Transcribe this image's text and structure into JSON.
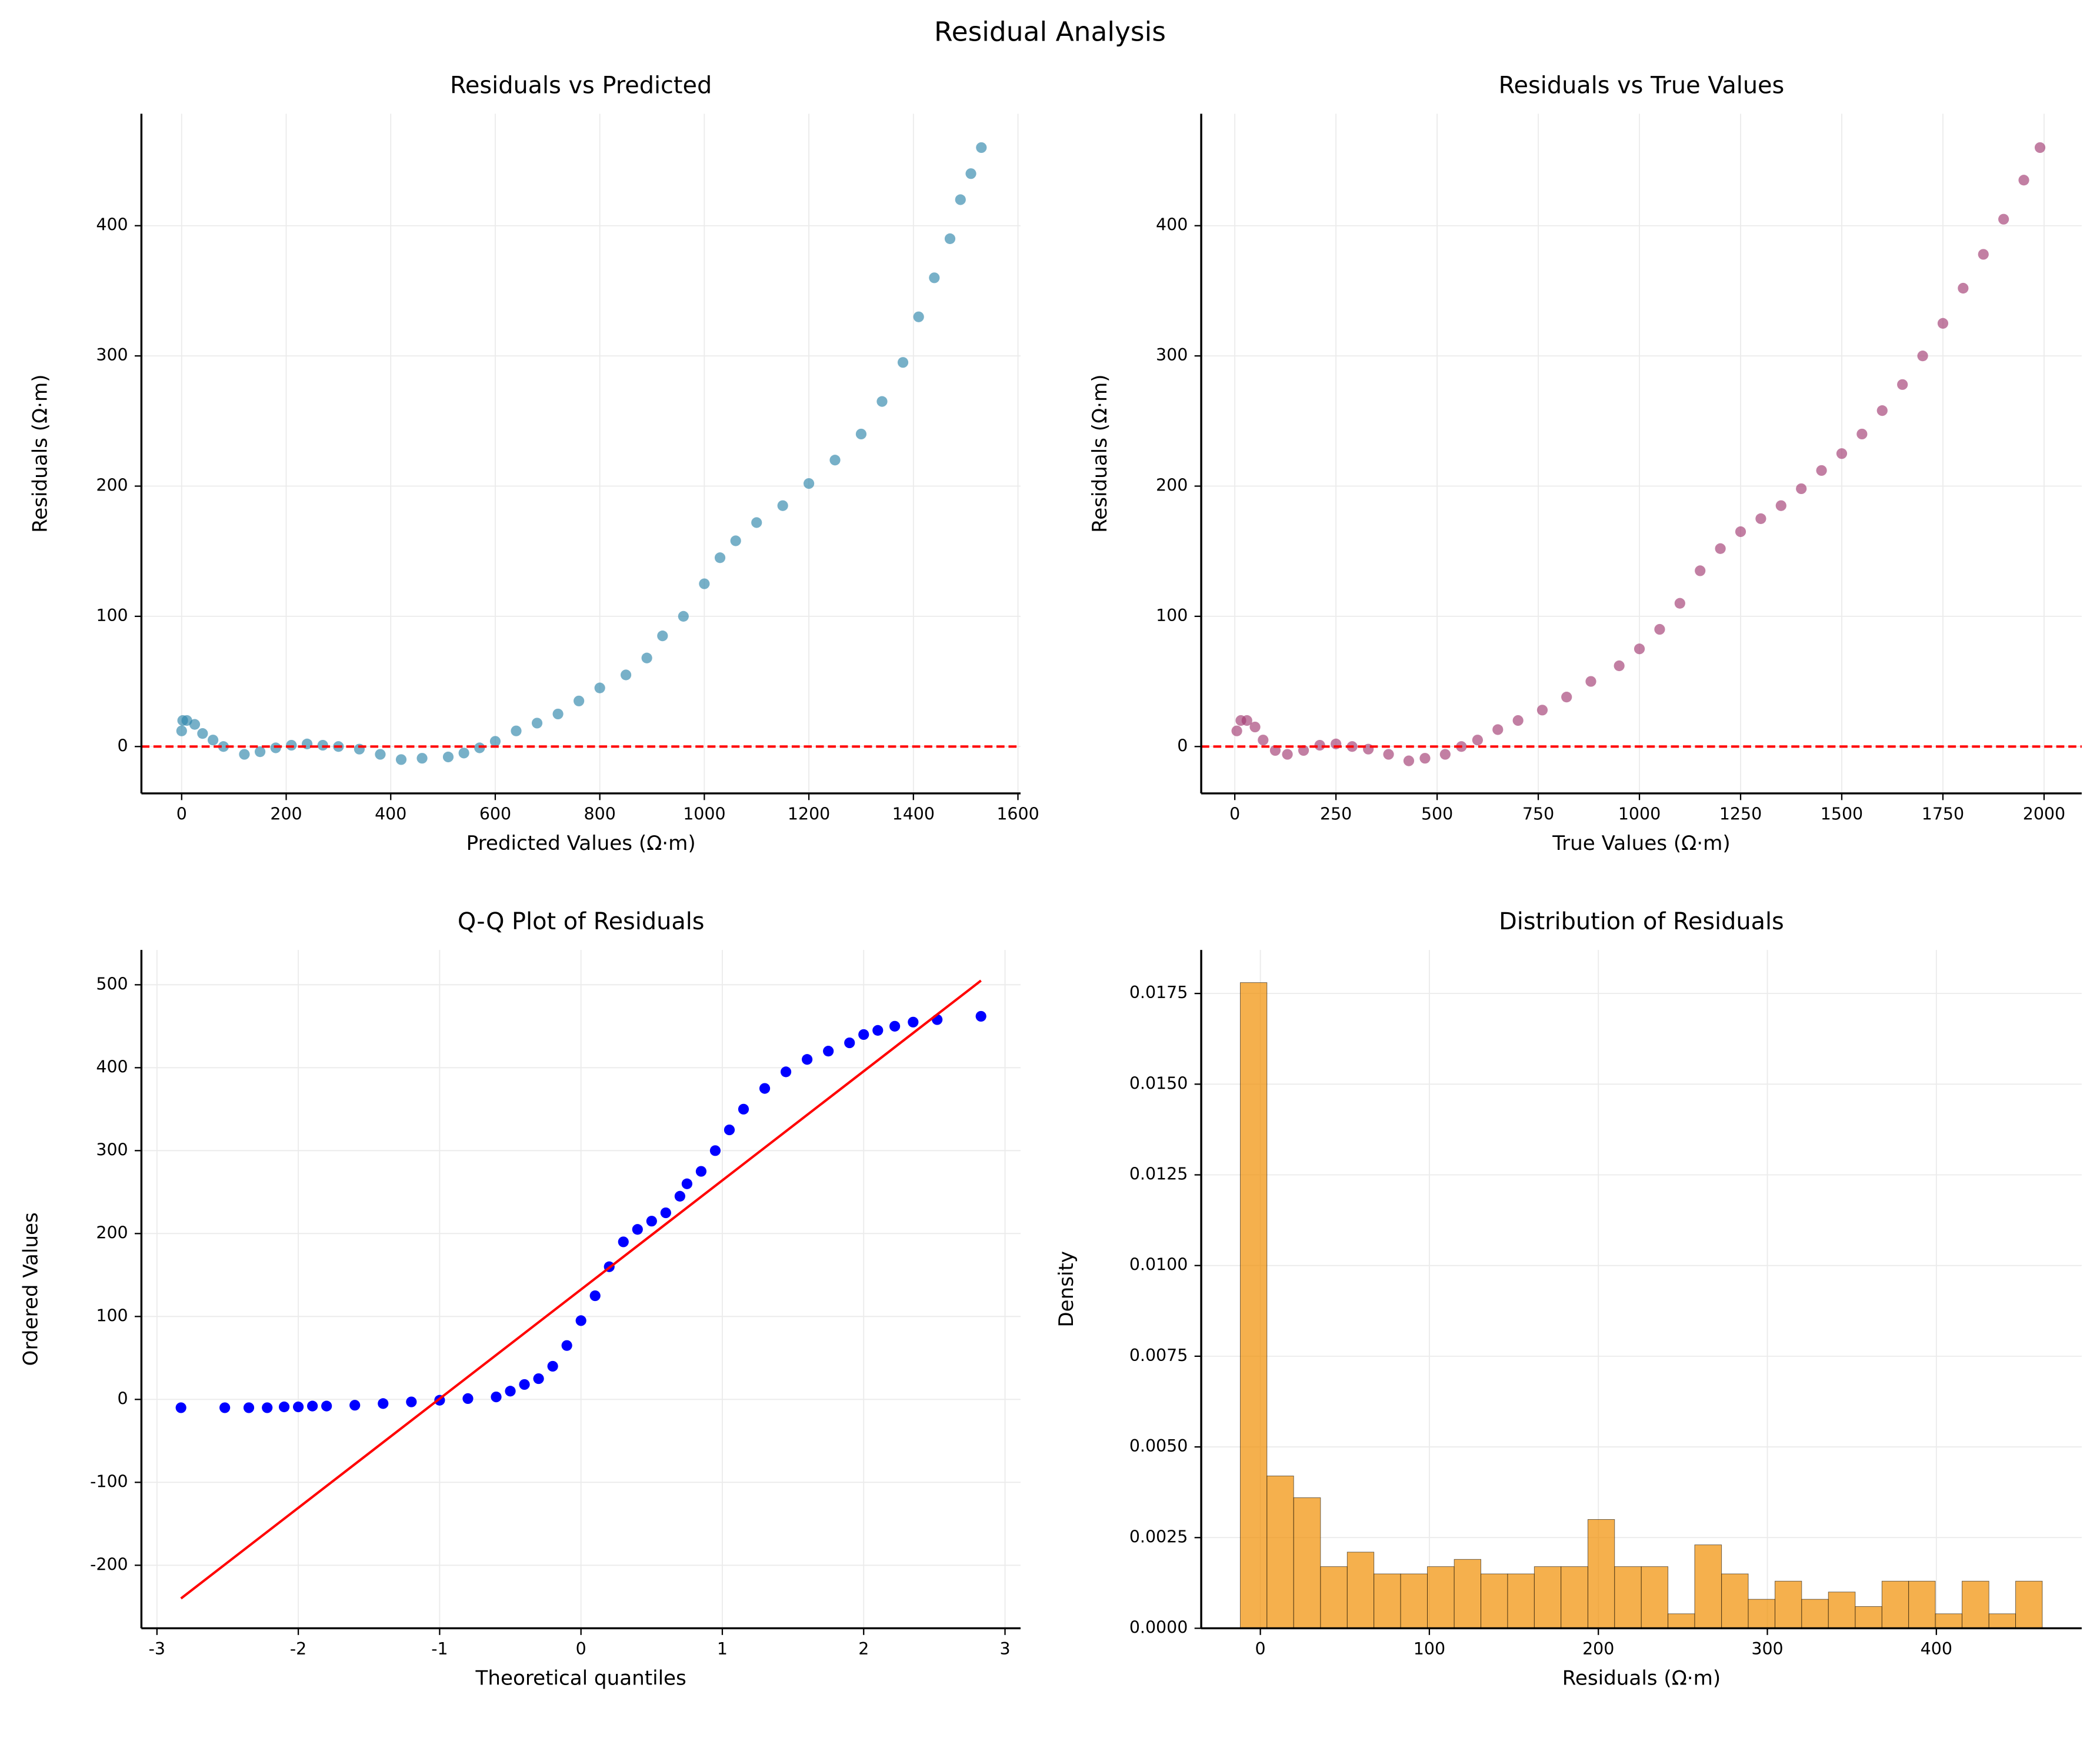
{
  "title": "Residual Analysis",
  "chart_data": [
    {
      "type": "scatter",
      "title": "Residuals vs Predicted",
      "xlabel": "Predicted Values (Ω·m)",
      "ylabel": "Residuals (Ω·m)",
      "color": "#2E86AB",
      "opacity": 0.65,
      "grid": true,
      "x": [
        0,
        2,
        10,
        25,
        40,
        60,
        80,
        120,
        150,
        180,
        210,
        240,
        270,
        300,
        340,
        380,
        420,
        460,
        510,
        540,
        570,
        600,
        640,
        680,
        720,
        760,
        800,
        850,
        890,
        920,
        960,
        1000,
        1030,
        1060,
        1100,
        1150,
        1200,
        1250,
        1300,
        1340,
        1380,
        1410,
        1440,
        1470,
        1490,
        1510,
        1530
      ],
      "values": [
        12,
        20,
        20,
        17,
        10,
        5,
        0,
        -6,
        -4,
        -1,
        1,
        2,
        1,
        0,
        -2,
        -6,
        -10,
        -9,
        -8,
        -5,
        -1,
        4,
        12,
        18,
        25,
        35,
        45,
        55,
        68,
        85,
        100,
        125,
        145,
        158,
        172,
        185,
        202,
        220,
        240,
        265,
        295,
        330,
        360,
        390,
        420,
        440,
        460
      ],
      "hline": 0,
      "hline_color": "#ff0000",
      "xlim": [
        -77,
        1605
      ],
      "ylim": [
        -36,
        486
      ],
      "xticks": [
        0,
        200,
        400,
        600,
        800,
        1000,
        1200,
        1400,
        1600
      ],
      "yticks": [
        0,
        100,
        200,
        300,
        400
      ]
    },
    {
      "type": "scatter",
      "title": "Residuals vs True Values",
      "xlabel": "True Values (Ω·m)",
      "ylabel": "Residuals (Ω·m)",
      "color": "#A23B72",
      "opacity": 0.65,
      "grid": true,
      "x": [
        5,
        15,
        30,
        50,
        70,
        100,
        130,
        170,
        210,
        250,
        290,
        330,
        380,
        430,
        470,
        520,
        560,
        600,
        650,
        700,
        760,
        820,
        880,
        950,
        1000,
        1050,
        1100,
        1150,
        1200,
        1250,
        1300,
        1350,
        1400,
        1450,
        1500,
        1550,
        1600,
        1650,
        1700,
        1750,
        1800,
        1850,
        1900,
        1950,
        1990
      ],
      "values": [
        12,
        20,
        20,
        15,
        5,
        -3,
        -6,
        -3,
        1,
        2,
        0,
        -2,
        -6,
        -11,
        -9,
        -6,
        0,
        5,
        13,
        20,
        28,
        38,
        50,
        62,
        75,
        90,
        110,
        135,
        152,
        165,
        175,
        185,
        198,
        212,
        225,
        240,
        258,
        278,
        300,
        325,
        352,
        378,
        405,
        435,
        460
      ],
      "hline": 0,
      "hline_color": "#ff0000",
      "xlim": [
        -83,
        2093
      ],
      "ylim": [
        -36,
        486
      ],
      "xticks": [
        0,
        250,
        500,
        750,
        1000,
        1250,
        1500,
        1750,
        2000
      ],
      "yticks": [
        0,
        100,
        200,
        300,
        400
      ]
    },
    {
      "type": "scatter",
      "title": "Q-Q Plot of Residuals",
      "xlabel": "Theoretical quantiles",
      "ylabel": "Ordered Values",
      "color": "#0000ff",
      "opacity": 1,
      "grid": true,
      "x": [
        -2.83,
        -2.52,
        -2.35,
        -2.22,
        -2.1,
        -2.0,
        -1.9,
        -1.8,
        -1.6,
        -1.4,
        -1.2,
        -1.0,
        -0.8,
        -0.6,
        -0.5,
        -0.4,
        -0.3,
        -0.2,
        -0.1,
        0.0,
        0.1,
        0.2,
        0.3,
        0.4,
        0.5,
        0.6,
        0.7,
        0.75,
        0.85,
        0.95,
        1.05,
        1.15,
        1.3,
        1.45,
        1.6,
        1.75,
        1.9,
        2.0,
        2.1,
        2.22,
        2.35,
        2.52,
        2.83
      ],
      "values": [
        -10,
        -10,
        -10,
        -10,
        -9,
        -9,
        -8,
        -8,
        -7,
        -5,
        -3,
        -1,
        1,
        3,
        10,
        18,
        25,
        40,
        65,
        95,
        125,
        160,
        190,
        205,
        215,
        225,
        245,
        260,
        275,
        300,
        325,
        350,
        375,
        395,
        410,
        420,
        430,
        440,
        445,
        450,
        455,
        458,
        462
      ],
      "line": {
        "x": [
          -2.83,
          2.83
        ],
        "values": [
          -240,
          505
        ],
        "color": "#ff0000"
      },
      "xlim": [
        -3.11,
        3.11
      ],
      "ylim": [
        -276,
        542
      ],
      "xticks": [
        -3,
        -2,
        -1,
        0,
        1,
        2,
        3
      ],
      "yticks": [
        -200,
        -100,
        0,
        100,
        200,
        300,
        400,
        500
      ]
    },
    {
      "type": "histogram",
      "title": "Distribution of Residuals",
      "xlabel": "Residuals (Ω·m)",
      "ylabel": "Density",
      "color": "#F18F01",
      "opacity": 0.7,
      "grid": true,
      "bins": [
        -11.9,
        3.9,
        19.7,
        35.6,
        51.4,
        67.2,
        83.0,
        98.8,
        114.7,
        130.5,
        146.3,
        162.1,
        177.9,
        193.8,
        209.6,
        225.4,
        241.2,
        257.0,
        272.9,
        288.7,
        304.5,
        320.3,
        336.1,
        352.0,
        367.8,
        383.6,
        399.4,
        415.2,
        431.1,
        446.9,
        462.7
      ],
      "values": [
        0.0178,
        0.0042,
        0.0036,
        0.0017,
        0.0021,
        0.0015,
        0.0015,
        0.0017,
        0.0019,
        0.0015,
        0.0015,
        0.0017,
        0.0017,
        0.003,
        0.0017,
        0.0017,
        0.0004,
        0.0023,
        0.0015,
        0.0008,
        0.0013,
        0.0008,
        0.001,
        0.0006,
        0.0013,
        0.0013,
        0.0004,
        0.0013,
        0.0004,
        0.0013
      ],
      "xlim": [
        -35,
        486
      ],
      "ylim": [
        0,
        0.0187
      ],
      "xticks": [
        0,
        100,
        200,
        300,
        400
      ],
      "yticks": [
        {
          "value": 0,
          "label": "0.0000"
        },
        {
          "value": 0.0025,
          "label": "0.0025"
        },
        {
          "value": 0.005,
          "label": "0.0050"
        },
        {
          "value": 0.0075,
          "label": "0.0075"
        },
        {
          "value": 0.01,
          "label": "0.0100"
        },
        {
          "value": 0.0125,
          "label": "0.0125"
        },
        {
          "value": 0.015,
          "label": "0.0150"
        },
        {
          "value": 0.0175,
          "label": "0.0175"
        }
      ]
    }
  ]
}
